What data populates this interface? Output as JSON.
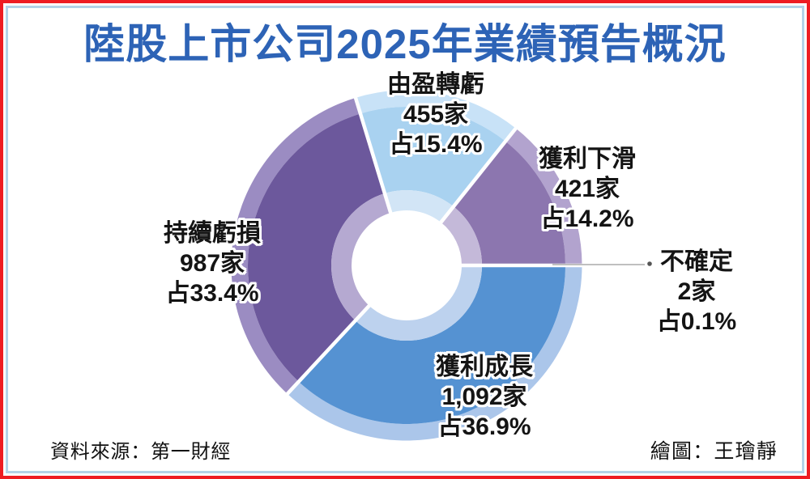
{
  "title": "陸股上市公司2025年業績預告概況",
  "source": "資料來源：第一財經",
  "credit": "繪圖：王璯靜",
  "title_color": "#2d63b6",
  "chart_data": {
    "type": "pie",
    "subtype": "donut",
    "title": "陸股上市公司2025年業績預告概況",
    "start_angle": "east, clockwise",
    "segments": [
      {
        "label": "獲利成長",
        "count_text": "1,092家",
        "pct_text": "占36.9%",
        "companies": 1092,
        "percent": 36.9,
        "color": "#5592d2",
        "color_outer": "#abc6ea",
        "color_inner": "#bdd2ee"
      },
      {
        "label": "持續虧損",
        "count_text": "987家",
        "pct_text": "占33.4%",
        "companies": 987,
        "percent": 33.4,
        "color": "#6c589c",
        "color_outer": "#9b8cc2",
        "color_inner": "#b5a9d1"
      },
      {
        "label": "由盈轉虧",
        "count_text": "455家",
        "pct_text": "占15.4%",
        "companies": 455,
        "percent": 15.4,
        "color": "#a9d2f0",
        "color_outer": "#c8e2f7",
        "color_inner": "#d2e5f6"
      },
      {
        "label": "獲利下滑",
        "count_text": "421家",
        "pct_text": "占14.2%",
        "companies": 421,
        "percent": 14.2,
        "color": "#8c76af",
        "color_outer": "#b2a3ce",
        "color_inner": "#c4b9d9"
      },
      {
        "label": "不確定",
        "count_text": "2家",
        "pct_text": "占0.1%",
        "companies": 2,
        "percent": 0.1,
        "color": "#c9c9d9",
        "color_outer": "#dcdce8",
        "color_inner": "#e4e4ee"
      }
    ]
  }
}
